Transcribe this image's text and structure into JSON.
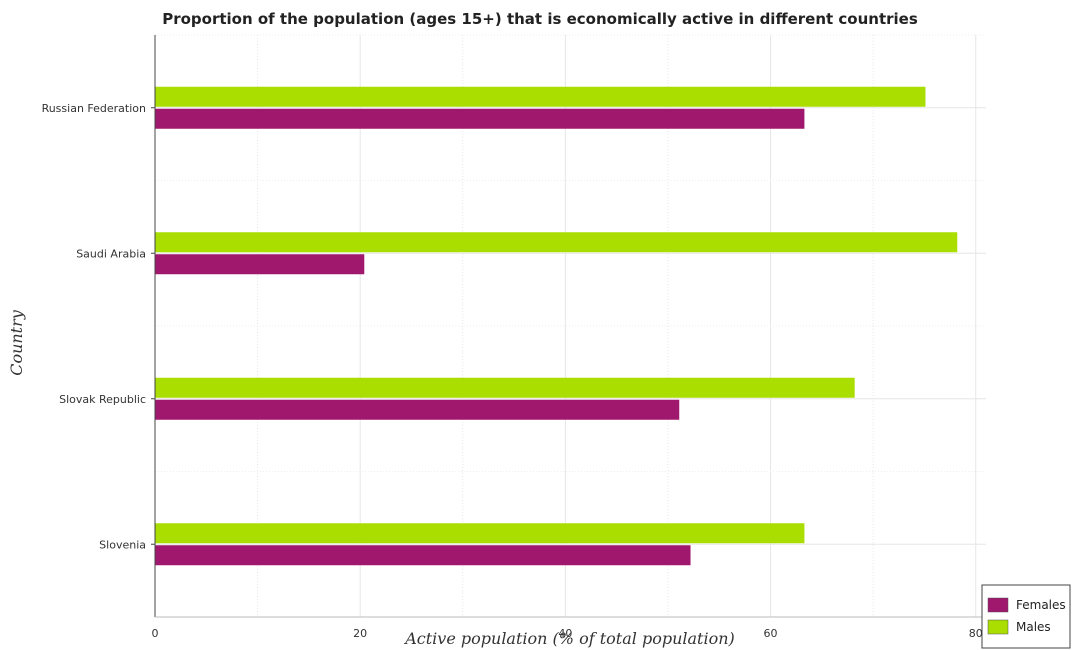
{
  "chart_data": {
    "type": "bar",
    "orientation": "horizontal",
    "title": "Proportion of the population (ages 15+) that is economically active in different countries",
    "xlabel": "Active population (% of total population)",
    "ylabel": "Country",
    "xlim": [
      0,
      81
    ],
    "xticks": [
      0,
      20,
      40,
      60,
      80
    ],
    "categories": [
      "Russian Federation",
      "Saudi Arabia",
      "Slovak Republic",
      "Slovenia"
    ],
    "series": [
      {
        "name": "Females",
        "color": "#a0176e",
        "values": [
          63.3,
          20.4,
          51.1,
          52.2
        ]
      },
      {
        "name": "Males",
        "color": "#aadd00",
        "values": [
          75.1,
          78.2,
          68.2,
          63.3
        ]
      }
    ],
    "grid": true,
    "legend_position": "bottom-right"
  }
}
